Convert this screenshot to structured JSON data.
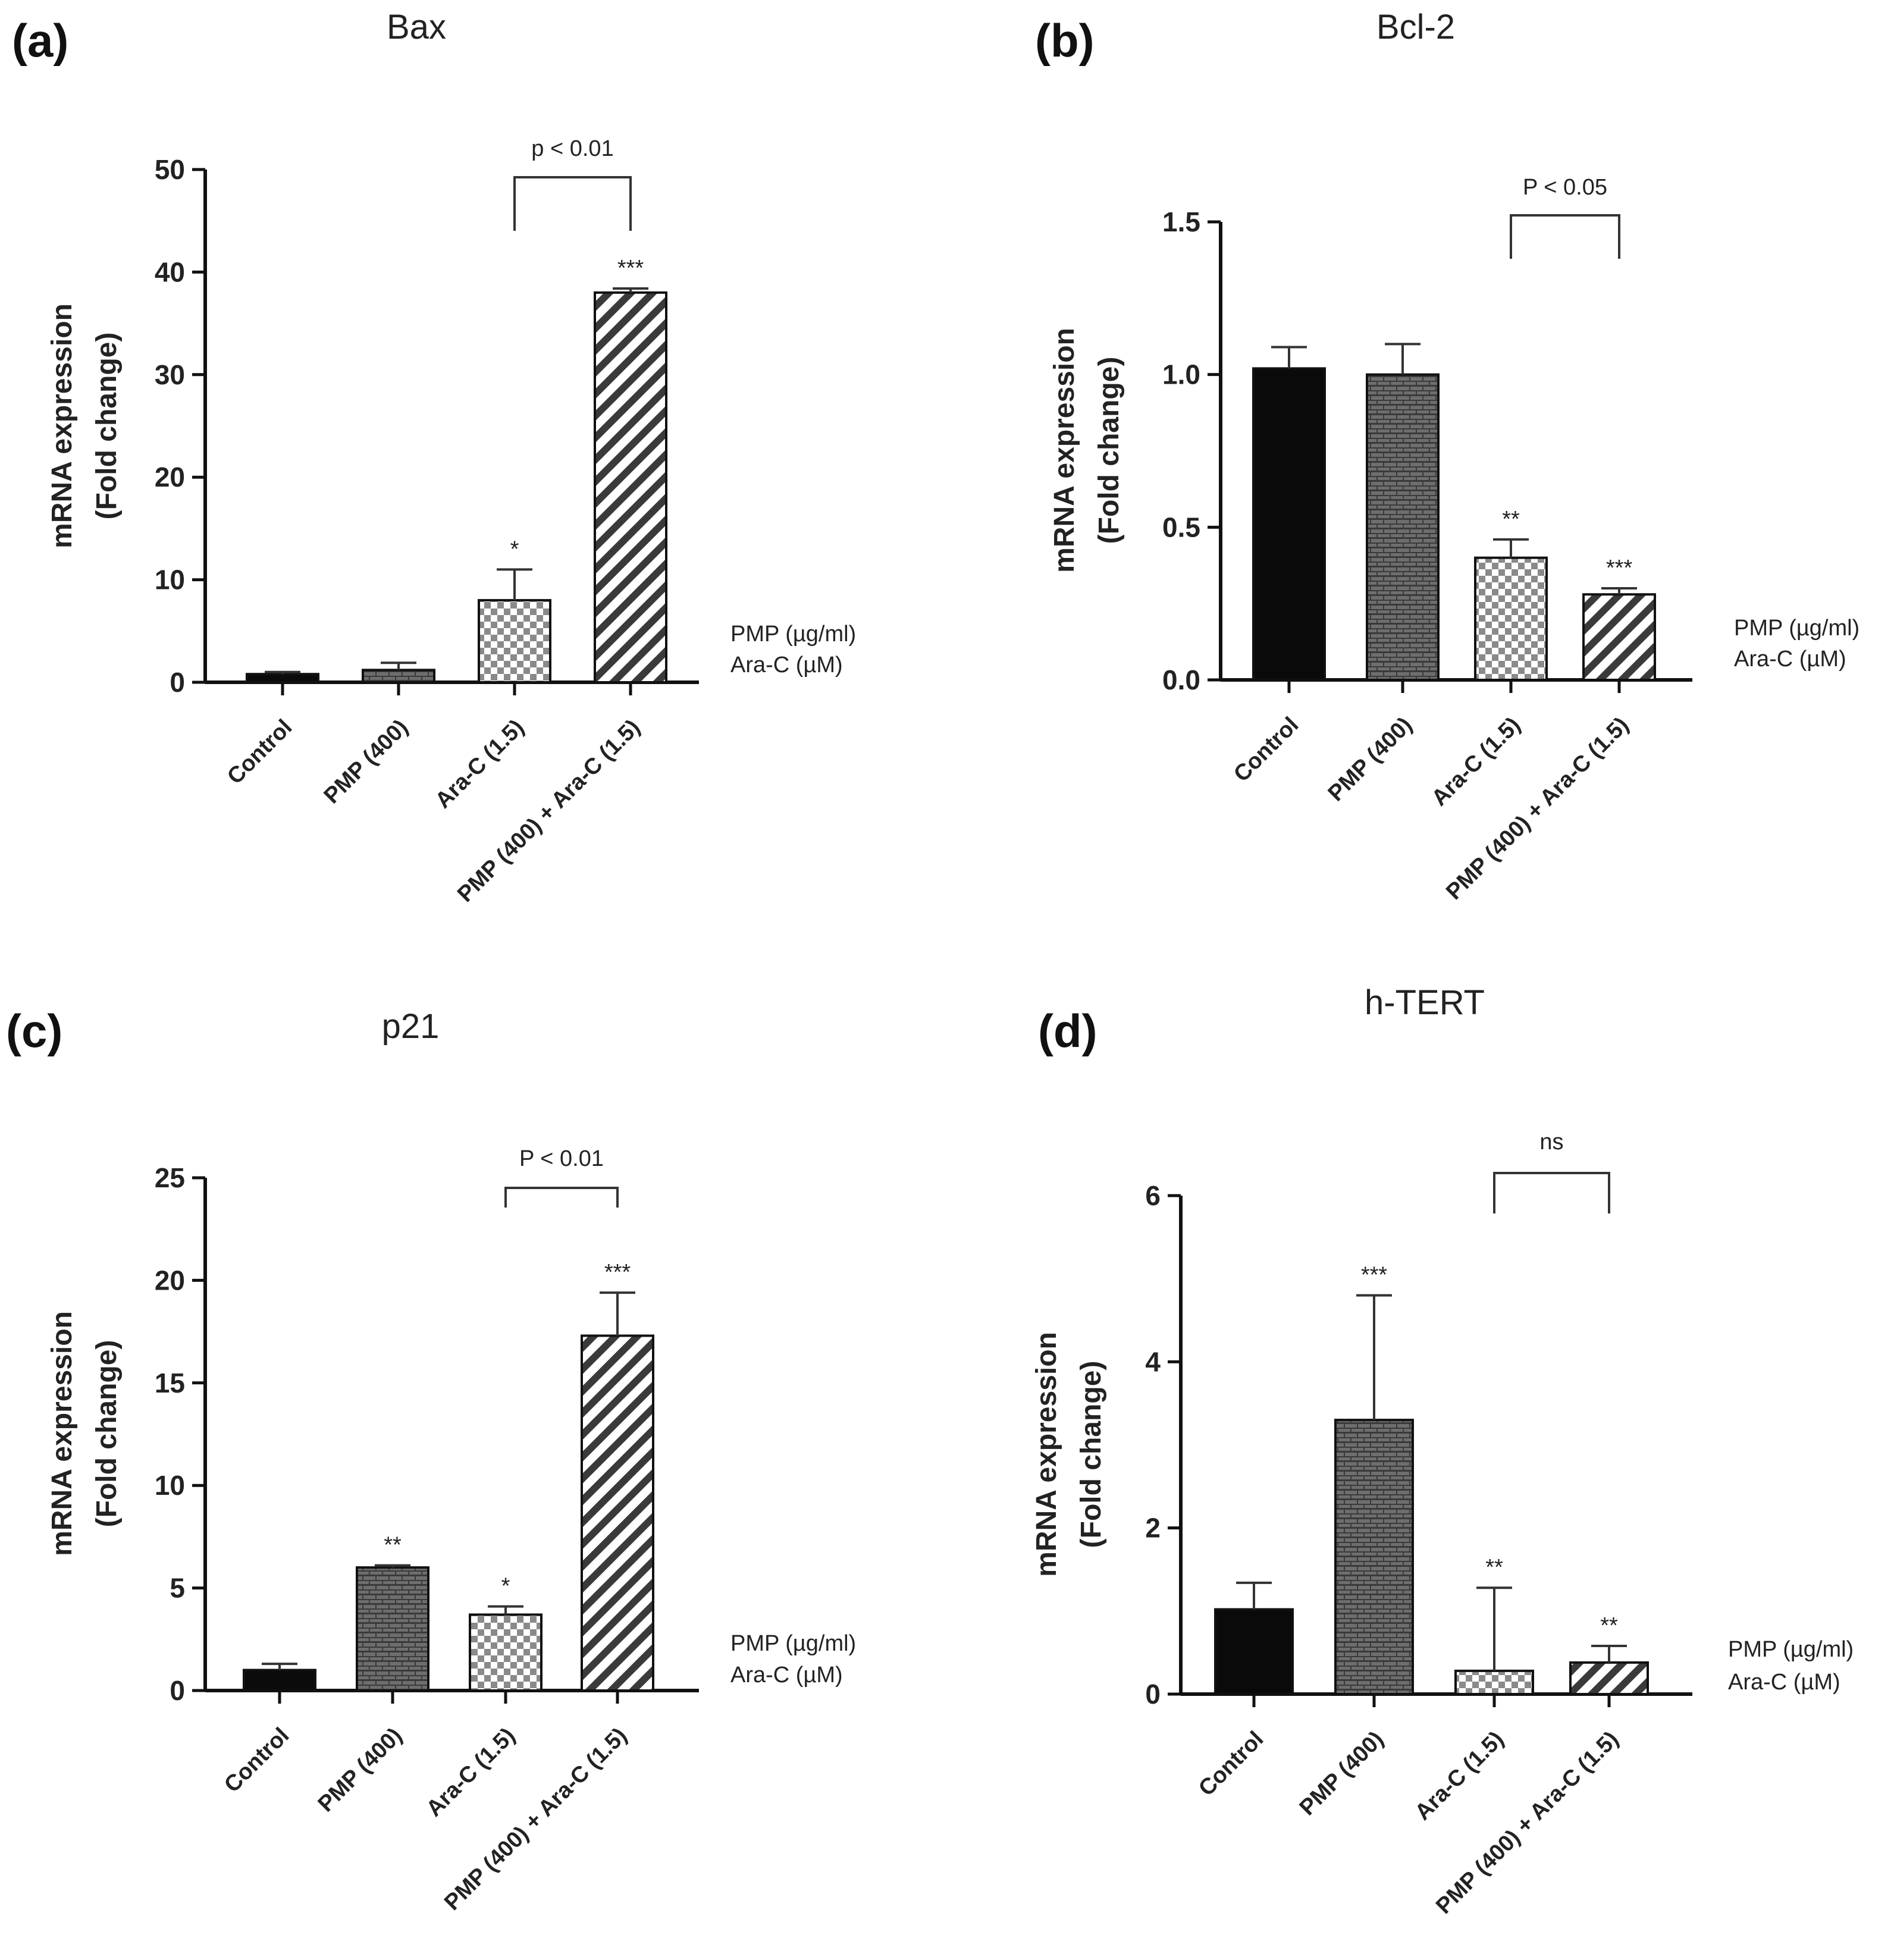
{
  "chart_data": [
    {
      "type": "bar",
      "panel": "(a)",
      "title": "Bax",
      "ylabel": [
        "mRNA expression",
        "(Fold change)"
      ],
      "ylim": [
        0,
        50
      ],
      "yticks": [
        0,
        10,
        20,
        30,
        40,
        50
      ],
      "categories": [
        "Control",
        "PMP (400)",
        "Ara-C (1.5)",
        "PMP (400) + Ara-C (1.5)"
      ],
      "values": [
        0.8,
        1.2,
        8.0,
        38.0
      ],
      "errors": [
        0.2,
        0.7,
        3.0,
        0.4
      ],
      "significance": [
        "",
        "",
        "*",
        "***"
      ],
      "patterns": [
        "solid",
        "brick",
        "checker",
        "diagonal"
      ],
      "comparison": {
        "from": 2,
        "to": 3,
        "label": "p < 0.01"
      },
      "legend": [
        "PMP (µg/ml)",
        "Ara-C (µM)"
      ]
    },
    {
      "type": "bar",
      "panel": "(b)",
      "title": "Bcl-2",
      "ylabel": [
        "mRNA expression",
        "(Fold change)"
      ],
      "ylim": [
        0,
        1.5
      ],
      "yticks": [
        0.0,
        0.5,
        1.0,
        1.5
      ],
      "tick_decimals": 1,
      "categories": [
        "Control",
        "PMP (400)",
        "Ara-C (1.5)",
        "PMP (400) + Ara-C (1.5)"
      ],
      "values": [
        1.02,
        1.0,
        0.4,
        0.28
      ],
      "errors": [
        0.07,
        0.1,
        0.06,
        0.02
      ],
      "significance": [
        "",
        "",
        "**",
        "***"
      ],
      "patterns": [
        "solid",
        "brick",
        "checker",
        "diagonal"
      ],
      "comparison": {
        "from": 2,
        "to": 3,
        "label": "P < 0.05"
      },
      "legend": [
        "PMP (µg/ml)",
        "Ara-C (µM)"
      ]
    },
    {
      "type": "bar",
      "panel": "(c)",
      "title": "p21",
      "ylabel": [
        "mRNA expression",
        "(Fold change)"
      ],
      "ylim": [
        0,
        25
      ],
      "yticks": [
        0,
        5,
        10,
        15,
        20,
        25
      ],
      "categories": [
        "Control",
        "PMP (400)",
        "Ara-C (1.5)",
        "PMP (400) + Ara-C (1.5)"
      ],
      "values": [
        1.0,
        6.0,
        3.7,
        17.3
      ],
      "errors": [
        0.3,
        0.1,
        0.4,
        2.1
      ],
      "significance": [
        "",
        "**",
        "*",
        "***"
      ],
      "patterns": [
        "solid",
        "brick",
        "checker",
        "diagonal"
      ],
      "comparison": {
        "from": 2,
        "to": 3,
        "label": "P < 0.01"
      },
      "legend": [
        "PMP (µg/ml)",
        "Ara-C (µM)"
      ]
    },
    {
      "type": "bar",
      "panel": "(d)",
      "title": "h-TERT",
      "ylabel": [
        "mRNA expression",
        "(Fold change)"
      ],
      "ylim": [
        0,
        6
      ],
      "yticks": [
        0,
        2,
        4,
        6
      ],
      "categories": [
        "Control",
        "PMP (400)",
        "Ara-C (1.5)",
        "PMP (400) + Ara-C (1.5)"
      ],
      "values": [
        1.02,
        3.3,
        0.28,
        0.38
      ],
      "errors": [
        0.32,
        1.5,
        1.0,
        0.2
      ],
      "significance": [
        "",
        "***",
        "**",
        "**"
      ],
      "patterns": [
        "solid",
        "brick",
        "checker",
        "diagonal"
      ],
      "comparison": {
        "from": 2,
        "to": 3,
        "label": "ns"
      },
      "legend": [
        "PMP (µg/ml)",
        "Ara-C (µM)"
      ]
    }
  ]
}
